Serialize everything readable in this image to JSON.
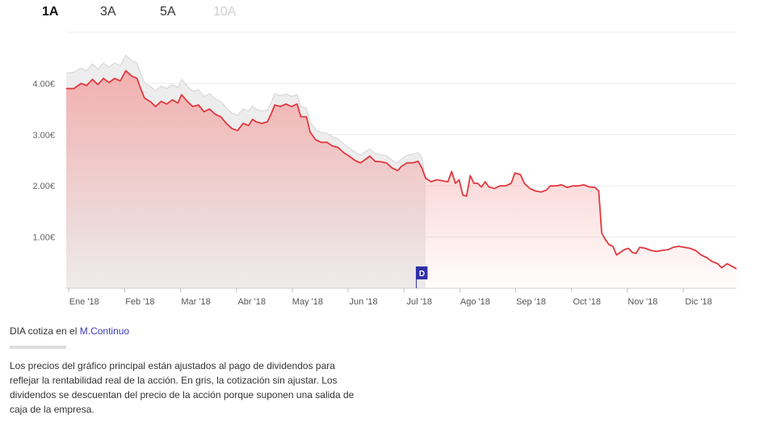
{
  "tabs": {
    "items": [
      {
        "label": "1A"
      },
      {
        "label": "3A"
      },
      {
        "label": "5A"
      },
      {
        "label": "10A"
      }
    ],
    "active_index": 0
  },
  "chart_data": {
    "type": "area",
    "ylim": [
      0,
      5
    ],
    "y_ticks": [
      {
        "value": 1,
        "label": "1.00€"
      },
      {
        "value": 2,
        "label": "2.00€"
      },
      {
        "value": 3,
        "label": "3.00€"
      },
      {
        "value": 4,
        "label": "4.00€"
      }
    ],
    "x_ticks": [
      "Ene '18",
      "Feb '18",
      "Mar '18",
      "Abr '18",
      "May '18",
      "Jun '18",
      "Jul '18",
      "Ago '18",
      "Sep '18",
      "Oct '18",
      "Nov '18",
      "Dic '18"
    ],
    "x_range_months": [
      0,
      12
    ],
    "grid": true,
    "series": [
      {
        "role": "adjusted",
        "color": "#e0393e",
        "points": [
          [
            0.0,
            3.9
          ],
          [
            0.2,
            3.9
          ],
          [
            0.4,
            4.0
          ],
          [
            0.55,
            3.96
          ],
          [
            0.7,
            4.08
          ],
          [
            0.85,
            3.98
          ],
          [
            1.0,
            4.1
          ],
          [
            1.15,
            4.02
          ],
          [
            1.3,
            4.1
          ],
          [
            1.45,
            4.05
          ],
          [
            1.6,
            4.25
          ],
          [
            1.75,
            4.15
          ],
          [
            1.9,
            4.1
          ],
          [
            2.0,
            3.9
          ],
          [
            2.1,
            3.72
          ],
          [
            2.25,
            3.65
          ],
          [
            2.4,
            3.55
          ],
          [
            2.55,
            3.65
          ],
          [
            2.7,
            3.6
          ],
          [
            2.85,
            3.68
          ],
          [
            3.0,
            3.62
          ],
          [
            3.1,
            3.78
          ],
          [
            3.25,
            3.65
          ],
          [
            3.4,
            3.55
          ],
          [
            3.55,
            3.58
          ],
          [
            3.7,
            3.45
          ],
          [
            3.85,
            3.5
          ],
          [
            4.0,
            3.4
          ],
          [
            4.15,
            3.35
          ],
          [
            4.3,
            3.22
          ],
          [
            4.45,
            3.12
          ],
          [
            4.6,
            3.08
          ],
          [
            4.75,
            3.22
          ],
          [
            4.9,
            3.18
          ],
          [
            5.0,
            3.3
          ],
          [
            5.1,
            3.25
          ],
          [
            5.25,
            3.22
          ],
          [
            5.4,
            3.25
          ],
          [
            5.5,
            3.4
          ],
          [
            5.6,
            3.58
          ],
          [
            5.75,
            3.55
          ],
          [
            5.9,
            3.6
          ],
          [
            6.05,
            3.55
          ],
          [
            6.2,
            3.6
          ],
          [
            6.3,
            3.35
          ],
          [
            6.45,
            3.35
          ],
          [
            6.55,
            3.05
          ],
          [
            6.7,
            2.9
          ],
          [
            6.85,
            2.85
          ],
          [
            7.0,
            2.85
          ],
          [
            7.15,
            2.78
          ],
          [
            7.3,
            2.75
          ],
          [
            7.45,
            2.65
          ],
          [
            7.6,
            2.58
          ],
          [
            7.75,
            2.5
          ],
          [
            7.9,
            2.45
          ],
          [
            8.0,
            2.5
          ],
          [
            8.15,
            2.58
          ],
          [
            8.3,
            2.48
          ],
          [
            8.45,
            2.47
          ],
          [
            8.6,
            2.45
          ],
          [
            8.75,
            2.35
          ],
          [
            8.9,
            2.3
          ],
          [
            9.0,
            2.38
          ],
          [
            9.15,
            2.45
          ],
          [
            9.3,
            2.45
          ],
          [
            9.45,
            2.48
          ],
          [
            9.55,
            2.35
          ],
          [
            9.65,
            2.15
          ],
          [
            9.8,
            2.08
          ],
          [
            9.95,
            2.12
          ],
          [
            10.1,
            2.1
          ],
          [
            10.25,
            2.08
          ],
          [
            10.35,
            2.28
          ],
          [
            10.45,
            2.05
          ],
          [
            10.55,
            2.12
          ],
          [
            10.65,
            1.82
          ],
          [
            10.75,
            1.8
          ],
          [
            10.85,
            2.2
          ],
          [
            10.95,
            2.05
          ],
          [
            11.05,
            2.05
          ],
          [
            11.15,
            1.98
          ],
          [
            11.25,
            2.08
          ],
          [
            11.35,
            1.98
          ],
          [
            11.5,
            1.95
          ],
          [
            11.65,
            2.0
          ],
          [
            11.8,
            2.0
          ],
          [
            11.95,
            2.05
          ],
          [
            12.05,
            2.25
          ],
          [
            12.2,
            2.22
          ],
          [
            12.3,
            2.05
          ],
          [
            12.45,
            1.95
          ],
          [
            12.6,
            1.9
          ],
          [
            12.75,
            1.88
          ],
          [
            12.9,
            1.92
          ],
          [
            13.0,
            2.0
          ],
          [
            13.15,
            2.0
          ],
          [
            13.3,
            2.02
          ],
          [
            13.45,
            1.97
          ],
          [
            13.6,
            2.0
          ],
          [
            13.75,
            2.0
          ],
          [
            13.9,
            2.02
          ],
          [
            14.05,
            1.98
          ],
          [
            14.2,
            1.97
          ],
          [
            14.3,
            1.9
          ],
          [
            14.38,
            1.08
          ],
          [
            14.48,
            0.95
          ],
          [
            14.58,
            0.85
          ],
          [
            14.68,
            0.82
          ],
          [
            14.78,
            0.65
          ],
          [
            14.88,
            0.7
          ],
          [
            14.98,
            0.75
          ],
          [
            15.1,
            0.78
          ],
          [
            15.2,
            0.7
          ],
          [
            15.3,
            0.68
          ],
          [
            15.4,
            0.8
          ],
          [
            15.55,
            0.78
          ],
          [
            15.7,
            0.74
          ],
          [
            15.85,
            0.72
          ],
          [
            16.0,
            0.74
          ],
          [
            16.15,
            0.75
          ],
          [
            16.3,
            0.8
          ],
          [
            16.45,
            0.82
          ],
          [
            16.6,
            0.8
          ],
          [
            16.75,
            0.78
          ],
          [
            16.9,
            0.74
          ],
          [
            17.05,
            0.65
          ],
          [
            17.2,
            0.6
          ],
          [
            17.35,
            0.52
          ],
          [
            17.5,
            0.48
          ],
          [
            17.6,
            0.4
          ],
          [
            17.75,
            0.48
          ],
          [
            17.9,
            0.42
          ],
          [
            18.0,
            0.38
          ]
        ]
      },
      {
        "role": "unadjusted",
        "color": "#d9d9d9",
        "points": [
          [
            0.0,
            4.2
          ],
          [
            0.2,
            4.22
          ],
          [
            0.4,
            4.3
          ],
          [
            0.55,
            4.25
          ],
          [
            0.7,
            4.38
          ],
          [
            0.85,
            4.28
          ],
          [
            1.0,
            4.4
          ],
          [
            1.15,
            4.32
          ],
          [
            1.3,
            4.4
          ],
          [
            1.45,
            4.35
          ],
          [
            1.6,
            4.55
          ],
          [
            1.75,
            4.45
          ],
          [
            1.9,
            4.4
          ],
          [
            2.0,
            4.2
          ],
          [
            2.1,
            4.02
          ],
          [
            2.25,
            3.95
          ],
          [
            2.4,
            3.85
          ],
          [
            2.55,
            3.95
          ],
          [
            2.7,
            3.9
          ],
          [
            2.85,
            3.98
          ],
          [
            3.0,
            3.92
          ],
          [
            3.1,
            4.08
          ],
          [
            3.25,
            3.95
          ],
          [
            3.4,
            3.85
          ],
          [
            3.55,
            3.88
          ],
          [
            3.7,
            3.75
          ],
          [
            3.85,
            3.8
          ],
          [
            4.0,
            3.7
          ],
          [
            4.15,
            3.65
          ],
          [
            4.3,
            3.52
          ],
          [
            4.45,
            3.42
          ],
          [
            4.6,
            3.38
          ],
          [
            4.75,
            3.5
          ],
          [
            4.9,
            3.46
          ],
          [
            5.0,
            3.56
          ],
          [
            5.1,
            3.5
          ],
          [
            5.25,
            3.46
          ],
          [
            5.4,
            3.48
          ],
          [
            5.5,
            3.62
          ],
          [
            5.6,
            3.8
          ],
          [
            5.75,
            3.76
          ],
          [
            5.9,
            3.8
          ],
          [
            6.05,
            3.75
          ],
          [
            6.2,
            3.78
          ],
          [
            6.3,
            3.55
          ],
          [
            6.45,
            3.52
          ],
          [
            6.55,
            3.25
          ],
          [
            6.7,
            3.1
          ],
          [
            6.85,
            3.04
          ],
          [
            7.0,
            3.03
          ],
          [
            7.15,
            2.96
          ],
          [
            7.3,
            2.92
          ],
          [
            7.45,
            2.82
          ],
          [
            7.6,
            2.74
          ],
          [
            7.75,
            2.66
          ],
          [
            7.9,
            2.6
          ],
          [
            8.0,
            2.65
          ],
          [
            8.15,
            2.72
          ],
          [
            8.3,
            2.63
          ],
          [
            8.45,
            2.61
          ],
          [
            8.6,
            2.59
          ],
          [
            8.75,
            2.5
          ],
          [
            8.9,
            2.45
          ],
          [
            9.0,
            2.52
          ],
          [
            9.15,
            2.6
          ],
          [
            9.3,
            2.62
          ],
          [
            9.45,
            2.65
          ],
          [
            9.55,
            2.55
          ],
          [
            9.65,
            2.15
          ]
        ]
      }
    ],
    "markers": [
      {
        "x": 9.4,
        "label": "D"
      }
    ]
  },
  "source": {
    "prefix": "DIA cotiza en el",
    "link": "M.Continuo"
  },
  "footnote": "Los precios del gráfico principal están ajustados al pago de dividendos para reflejar la rentabilidad real de la acción. En gris, la cotización sin ajustar. Los dividendos se descuentan del precio de la acción porque suponen una salida de caja de la empresa."
}
